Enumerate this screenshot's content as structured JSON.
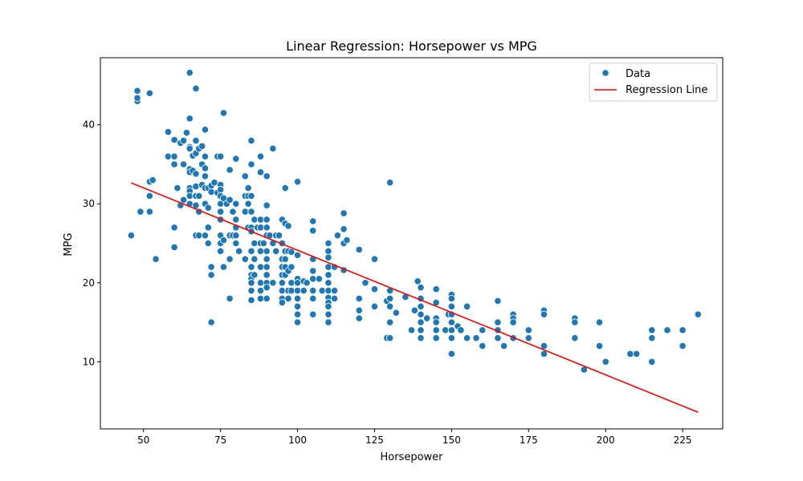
{
  "chart_data": {
    "type": "scatter",
    "title": "Linear Regression: Horsepower vs MPG",
    "xlabel": "Horsepower",
    "ylabel": "MPG",
    "xlim": [
      36,
      238
    ],
    "ylim": [
      1.5,
      48.5
    ],
    "xticks": [
      50,
      75,
      100,
      125,
      150,
      175,
      200,
      225
    ],
    "yticks": [
      10,
      20,
      30,
      40
    ],
    "grid": false,
    "legend_position": "top-right",
    "colors": {
      "points": "#1f77b4",
      "points_edge": "#ffffff",
      "line": "#ff0000"
    },
    "series": [
      {
        "name": "Data",
        "kind": "scatter",
        "points": [
          [
            46,
            26
          ],
          [
            48,
            43
          ],
          [
            48,
            43.4
          ],
          [
            48,
            44.3
          ],
          [
            49,
            29
          ],
          [
            52,
            44
          ],
          [
            52,
            32.8
          ],
          [
            52,
            31
          ],
          [
            52,
            29
          ],
          [
            53,
            33
          ],
          [
            54,
            23
          ],
          [
            58,
            39.1
          ],
          [
            58,
            36
          ],
          [
            60,
            38.1
          ],
          [
            60,
            36
          ],
          [
            60,
            35
          ],
          [
            60,
            24.5
          ],
          [
            60,
            27
          ],
          [
            61,
            32
          ],
          [
            62,
            37.7
          ],
          [
            62,
            29.8
          ],
          [
            63,
            38
          ],
          [
            63,
            35
          ],
          [
            63,
            30.5
          ],
          [
            64,
            39
          ],
          [
            65,
            46.6
          ],
          [
            65,
            40.8
          ],
          [
            65,
            37.2
          ],
          [
            65,
            37
          ],
          [
            65,
            34.4
          ],
          [
            65,
            34
          ],
          [
            65,
            32
          ],
          [
            65,
            31.6
          ],
          [
            65,
            31
          ],
          [
            65,
            30
          ],
          [
            66,
            36.1
          ],
          [
            66,
            34.2
          ],
          [
            67,
            44.6
          ],
          [
            67,
            38
          ],
          [
            67,
            36.4
          ],
          [
            67,
            33.8
          ],
          [
            67,
            32.2
          ],
          [
            67,
            31
          ],
          [
            67,
            29.8
          ],
          [
            67,
            26
          ],
          [
            68,
            37
          ],
          [
            68,
            31
          ],
          [
            68,
            29
          ],
          [
            68,
            26
          ],
          [
            69,
            37.3
          ],
          [
            69,
            35
          ],
          [
            69,
            32.4
          ],
          [
            70,
            39.4
          ],
          [
            70,
            36
          ],
          [
            70,
            34.5
          ],
          [
            70,
            33.5
          ],
          [
            70,
            32
          ],
          [
            70,
            30
          ],
          [
            70,
            26
          ],
          [
            71,
            32
          ],
          [
            71,
            29.5
          ],
          [
            71,
            27
          ],
          [
            71,
            25
          ],
          [
            72,
            32.3
          ],
          [
            72,
            31.5
          ],
          [
            72,
            22
          ],
          [
            72,
            21
          ],
          [
            72,
            15
          ],
          [
            73,
            32.7
          ],
          [
            74,
            36
          ],
          [
            74,
            31.4
          ],
          [
            75,
            36
          ],
          [
            75,
            32.4
          ],
          [
            75,
            31.8
          ],
          [
            75,
            31
          ],
          [
            75,
            30
          ],
          [
            75,
            29
          ],
          [
            75,
            28
          ],
          [
            75,
            26
          ],
          [
            75,
            25
          ],
          [
            75,
            24
          ],
          [
            76,
            41.5
          ],
          [
            76,
            30.7
          ],
          [
            76,
            25.4
          ],
          [
            76,
            22
          ],
          [
            77,
            30
          ],
          [
            78,
            34.3
          ],
          [
            78,
            30.5
          ],
          [
            78,
            26
          ],
          [
            78,
            23
          ],
          [
            78,
            18
          ],
          [
            79,
            29
          ],
          [
            79,
            26
          ],
          [
            80,
            35.7
          ],
          [
            80,
            30
          ],
          [
            80,
            28
          ],
          [
            80,
            27
          ],
          [
            80,
            26
          ],
          [
            80,
            25
          ],
          [
            81,
            24
          ],
          [
            83,
            33.5
          ],
          [
            83,
            31
          ],
          [
            83,
            29
          ],
          [
            83,
            23
          ],
          [
            84,
            32
          ],
          [
            84,
            31
          ],
          [
            84,
            30
          ],
          [
            84,
            27
          ],
          [
            85,
            38
          ],
          [
            85,
            35
          ],
          [
            85,
            31
          ],
          [
            85,
            29
          ],
          [
            85,
            27
          ],
          [
            85,
            26.5
          ],
          [
            85,
            24
          ],
          [
            85,
            22
          ],
          [
            85,
            21
          ],
          [
            85,
            20.5
          ],
          [
            85,
            20
          ],
          [
            85,
            19
          ],
          [
            85,
            17.8
          ],
          [
            86,
            28
          ],
          [
            86,
            25
          ],
          [
            86,
            23
          ],
          [
            86,
            21
          ],
          [
            87,
            27
          ],
          [
            88,
            36
          ],
          [
            88,
            34
          ],
          [
            88,
            28
          ],
          [
            88,
            27
          ],
          [
            88,
            25
          ],
          [
            88,
            24
          ],
          [
            88,
            22
          ],
          [
            88,
            20
          ],
          [
            88,
            19
          ],
          [
            88,
            18
          ],
          [
            89,
            25
          ],
          [
            90,
            33.5
          ],
          [
            90,
            29.8
          ],
          [
            90,
            28
          ],
          [
            90,
            27
          ],
          [
            90,
            26
          ],
          [
            90,
            24
          ],
          [
            90,
            23
          ],
          [
            90,
            22
          ],
          [
            90,
            21
          ],
          [
            90,
            20
          ],
          [
            90,
            19.4
          ],
          [
            90,
            18
          ],
          [
            91,
            26
          ],
          [
            92,
            37
          ],
          [
            92,
            25
          ],
          [
            92,
            20
          ],
          [
            93,
            26
          ],
          [
            93,
            24
          ],
          [
            94,
            26
          ],
          [
            95,
            28
          ],
          [
            95,
            25
          ],
          [
            95,
            23
          ],
          [
            95,
            22
          ],
          [
            95,
            21
          ],
          [
            95,
            20
          ],
          [
            95,
            19
          ],
          [
            95,
            18
          ],
          [
            95,
            17.5
          ],
          [
            96,
            27.5
          ],
          [
            96,
            24
          ],
          [
            96,
            23
          ],
          [
            96,
            22
          ],
          [
            96,
            21
          ],
          [
            96,
            32
          ],
          [
            97,
            27.2
          ],
          [
            97,
            24
          ],
          [
            97,
            21.5
          ],
          [
            97,
            19
          ],
          [
            97,
            18
          ],
          [
            98,
            23.9
          ],
          [
            98,
            22
          ],
          [
            98,
            20
          ],
          [
            98,
            19
          ],
          [
            100,
            32.8
          ],
          [
            100,
            23.5
          ],
          [
            100,
            20.5
          ],
          [
            100,
            20
          ],
          [
            100,
            19
          ],
          [
            100,
            18
          ],
          [
            100,
            17
          ],
          [
            100,
            16
          ],
          [
            100,
            15
          ],
          [
            102,
            20.2
          ],
          [
            102,
            19
          ],
          [
            103,
            20
          ],
          [
            105,
            27.8
          ],
          [
            105,
            26.6
          ],
          [
            105,
            23
          ],
          [
            105,
            21.5
          ],
          [
            105,
            20.5
          ],
          [
            105,
            19
          ],
          [
            105,
            18
          ],
          [
            105,
            16
          ],
          [
            107,
            20.5
          ],
          [
            108,
            19
          ],
          [
            110,
            25
          ],
          [
            110,
            24
          ],
          [
            110,
            23.2
          ],
          [
            110,
            22
          ],
          [
            110,
            21
          ],
          [
            110,
            20
          ],
          [
            110,
            19
          ],
          [
            110,
            18.1
          ],
          [
            110,
            17.5
          ],
          [
            110,
            17
          ],
          [
            110,
            16
          ],
          [
            110,
            15
          ],
          [
            112,
            22
          ],
          [
            112,
            19
          ],
          [
            112,
            18
          ],
          [
            113,
            26
          ],
          [
            115,
            28.8
          ],
          [
            115,
            26.8
          ],
          [
            115,
            25
          ],
          [
            115,
            21.6
          ],
          [
            116,
            25.4
          ],
          [
            120,
            24.2
          ],
          [
            120,
            18
          ],
          [
            120,
            16.5
          ],
          [
            120,
            15.5
          ],
          [
            122,
            20
          ],
          [
            125,
            23
          ],
          [
            125,
            19.2
          ],
          [
            125,
            17
          ],
          [
            129,
            13
          ],
          [
            129,
            17.7
          ],
          [
            130,
            32.7
          ],
          [
            130,
            19
          ],
          [
            130,
            18
          ],
          [
            130,
            17
          ],
          [
            130,
            15
          ],
          [
            130,
            13
          ],
          [
            132,
            16.2
          ],
          [
            135,
            18.2
          ],
          [
            137,
            14
          ],
          [
            138,
            16.5
          ],
          [
            139,
            20.2
          ],
          [
            140,
            19.4
          ],
          [
            140,
            18
          ],
          [
            140,
            17
          ],
          [
            140,
            16
          ],
          [
            140,
            15
          ],
          [
            140,
            14
          ],
          [
            140,
            13
          ],
          [
            142,
            15.5
          ],
          [
            145,
            19.2
          ],
          [
            145,
            17.5
          ],
          [
            145,
            15.5
          ],
          [
            145,
            15
          ],
          [
            145,
            14
          ],
          [
            145,
            13
          ],
          [
            148,
            14
          ],
          [
            149,
            16
          ],
          [
            150,
            18.5
          ],
          [
            150,
            18
          ],
          [
            150,
            17
          ],
          [
            150,
            16
          ],
          [
            150,
            15
          ],
          [
            150,
            14
          ],
          [
            150,
            13
          ],
          [
            150,
            11
          ],
          [
            152,
            14.5
          ],
          [
            153,
            14
          ],
          [
            155,
            17
          ],
          [
            155,
            13
          ],
          [
            158,
            13
          ],
          [
            160,
            14
          ],
          [
            160,
            12
          ],
          [
            165,
            17.7
          ],
          [
            165,
            15
          ],
          [
            165,
            14
          ],
          [
            165,
            13
          ],
          [
            167,
            12
          ],
          [
            170,
            16
          ],
          [
            170,
            15.5
          ],
          [
            170,
            15
          ],
          [
            170,
            13
          ],
          [
            175,
            14
          ],
          [
            175,
            13
          ],
          [
            180,
            16.5
          ],
          [
            180,
            16
          ],
          [
            180,
            12
          ],
          [
            180,
            11
          ],
          [
            190,
            15.5
          ],
          [
            190,
            15
          ],
          [
            190,
            13
          ],
          [
            193,
            9
          ],
          [
            198,
            15
          ],
          [
            198,
            12
          ],
          [
            200,
            10
          ],
          [
            208,
            11
          ],
          [
            210,
            11
          ],
          [
            215,
            14
          ],
          [
            215,
            13
          ],
          [
            215,
            10
          ],
          [
            220,
            14
          ],
          [
            225,
            14
          ],
          [
            225,
            12
          ],
          [
            230,
            16
          ]
        ]
      },
      {
        "name": "Regression Line",
        "kind": "line",
        "points": [
          [
            46,
            32.65
          ],
          [
            230,
            3.61
          ]
        ]
      }
    ]
  }
}
